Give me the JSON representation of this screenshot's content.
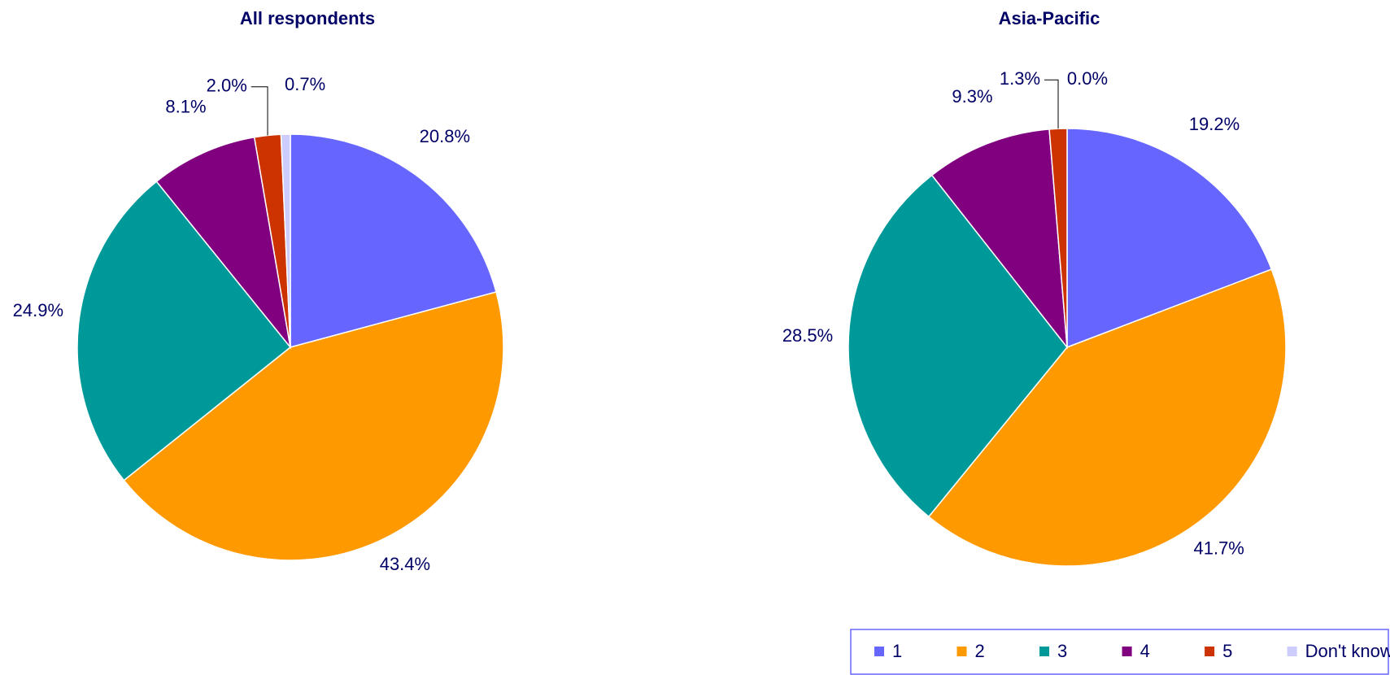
{
  "chart_data": [
    {
      "type": "pie",
      "title": "All respondents",
      "categories": [
        "1",
        "2",
        "3",
        "4",
        "5",
        "Don't know"
      ],
      "values": [
        20.8,
        43.4,
        24.9,
        8.1,
        2.0,
        0.7
      ],
      "value_labels": [
        "20.8%",
        "43.4%",
        "24.9%",
        "8.1%",
        "2.0%",
        "0.7%"
      ],
      "colors": [
        "#6666ff",
        "#ff9900",
        "#009999",
        "#800080",
        "#cc3300",
        "#ccccff"
      ]
    },
    {
      "type": "pie",
      "title": "Asia-Pacific",
      "categories": [
        "1",
        "2",
        "3",
        "4",
        "5",
        "Don't know"
      ],
      "values": [
        19.2,
        41.7,
        28.5,
        9.3,
        1.3,
        0.0
      ],
      "value_labels": [
        "19.2%",
        "41.7%",
        "28.5%",
        "9.3%",
        "1.3%",
        "0.0%"
      ],
      "colors": [
        "#6666ff",
        "#ff9900",
        "#009999",
        "#800080",
        "#cc3300",
        "#ccccff"
      ],
      "legend": "bottom-right"
    }
  ]
}
